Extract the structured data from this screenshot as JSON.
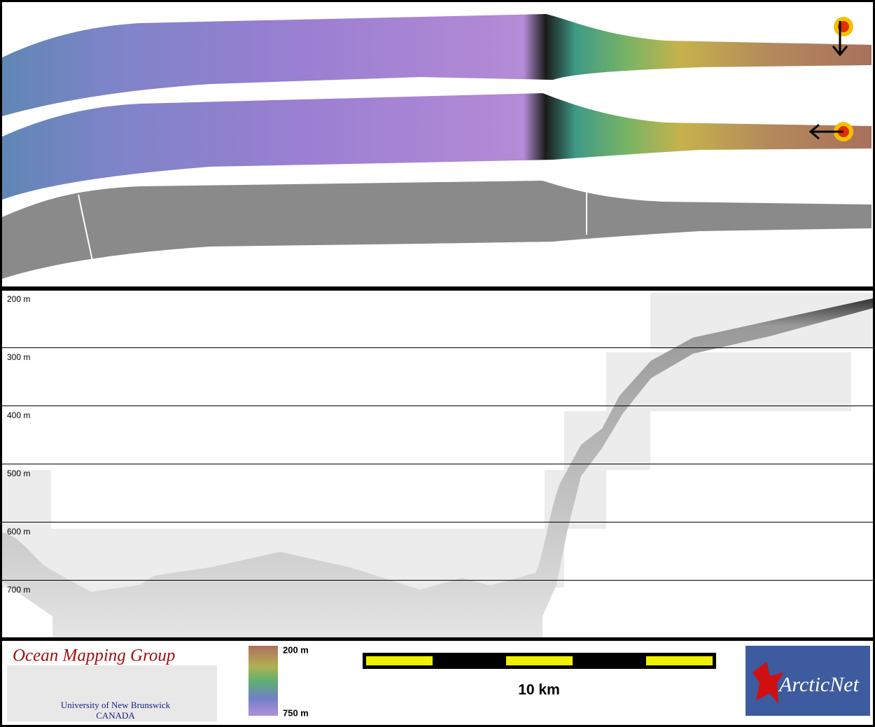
{
  "profile": {
    "depth_labels": [
      "200 m",
      "300 m",
      "400 m",
      "500 m",
      "600 m",
      "700 m"
    ]
  },
  "footer": {
    "logo_title": "Ocean Mapping Group",
    "logo_university": "University of New Brunswick",
    "logo_country": "CANADA",
    "color_scale_top": "200 m",
    "color_scale_bottom": "750 m",
    "scale_bar_label": "10 km",
    "partner_logo": "ArcticNet"
  }
}
